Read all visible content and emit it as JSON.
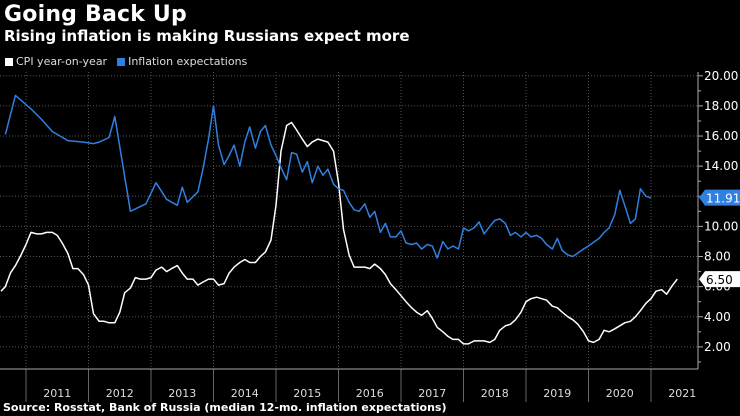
{
  "chart_data": {
    "type": "line",
    "title": "Going Back Up",
    "subtitle": "Rising inflation is making Russians expect more",
    "source": "Source: Rosstat, Bank of Russia (median 12-mo. inflation expectations)",
    "xlabel": "",
    "ylabel": "",
    "x_ticks": [
      "2011",
      "2012",
      "2013",
      "2014",
      "2015",
      "2016",
      "2017",
      "2018",
      "2019",
      "2020",
      "2021"
    ],
    "x_range": [
      2010.6,
      2021.45
    ],
    "y_ticks": [
      "2.00",
      "4.00",
      "6.00",
      "8.00",
      "10.00",
      "12.00",
      "14.00",
      "16.00",
      "18.00",
      "20.00"
    ],
    "ylim": [
      0,
      20.5
    ],
    "grid": true,
    "legend_position": "top-left",
    "colors": {
      "cpi": "#ffffff",
      "expectations": "#2f80e0",
      "background": "#000000"
    },
    "series": [
      {
        "name": "CPI year-on-year",
        "last_value_label": "6.50",
        "points": [
          [
            2010.6,
            5.7
          ],
          [
            2010.67,
            6.0
          ],
          [
            2010.75,
            6.9
          ],
          [
            2010.83,
            7.4
          ],
          [
            2010.92,
            8.1
          ],
          [
            2011.0,
            8.8
          ],
          [
            2011.08,
            9.6
          ],
          [
            2011.17,
            9.5
          ],
          [
            2011.25,
            9.5
          ],
          [
            2011.33,
            9.6
          ],
          [
            2011.42,
            9.6
          ],
          [
            2011.5,
            9.4
          ],
          [
            2011.58,
            8.9
          ],
          [
            2011.67,
            8.2
          ],
          [
            2011.75,
            7.2
          ],
          [
            2011.83,
            7.2
          ],
          [
            2011.92,
            6.8
          ],
          [
            2012.0,
            6.1
          ],
          [
            2012.08,
            4.2
          ],
          [
            2012.17,
            3.7
          ],
          [
            2012.25,
            3.7
          ],
          [
            2012.33,
            3.6
          ],
          [
            2012.42,
            3.6
          ],
          [
            2012.5,
            4.3
          ],
          [
            2012.58,
            5.6
          ],
          [
            2012.67,
            5.9
          ],
          [
            2012.75,
            6.6
          ],
          [
            2012.83,
            6.5
          ],
          [
            2012.92,
            6.5
          ],
          [
            2013.0,
            6.6
          ],
          [
            2013.08,
            7.1
          ],
          [
            2013.17,
            7.3
          ],
          [
            2013.25,
            7.0
          ],
          [
            2013.33,
            7.2
          ],
          [
            2013.42,
            7.4
          ],
          [
            2013.5,
            6.9
          ],
          [
            2013.58,
            6.5
          ],
          [
            2013.67,
            6.5
          ],
          [
            2013.75,
            6.1
          ],
          [
            2013.83,
            6.3
          ],
          [
            2013.92,
            6.5
          ],
          [
            2014.0,
            6.5
          ],
          [
            2014.08,
            6.1
          ],
          [
            2014.17,
            6.2
          ],
          [
            2014.25,
            6.9
          ],
          [
            2014.33,
            7.3
          ],
          [
            2014.42,
            7.6
          ],
          [
            2014.5,
            7.8
          ],
          [
            2014.58,
            7.6
          ],
          [
            2014.67,
            7.6
          ],
          [
            2014.75,
            8.0
          ],
          [
            2014.83,
            8.3
          ],
          [
            2014.92,
            9.1
          ],
          [
            2015.0,
            11.4
          ],
          [
            2015.08,
            15.0
          ],
          [
            2015.17,
            16.7
          ],
          [
            2015.25,
            16.9
          ],
          [
            2015.33,
            16.4
          ],
          [
            2015.42,
            15.8
          ],
          [
            2015.5,
            15.3
          ],
          [
            2015.58,
            15.6
          ],
          [
            2015.67,
            15.8
          ],
          [
            2015.75,
            15.7
          ],
          [
            2015.83,
            15.6
          ],
          [
            2015.92,
            15.0
          ],
          [
            2016.0,
            12.9
          ],
          [
            2016.08,
            9.8
          ],
          [
            2016.17,
            8.1
          ],
          [
            2016.25,
            7.3
          ],
          [
            2016.33,
            7.3
          ],
          [
            2016.42,
            7.3
          ],
          [
            2016.5,
            7.2
          ],
          [
            2016.58,
            7.5
          ],
          [
            2016.67,
            7.2
          ],
          [
            2016.75,
            6.8
          ],
          [
            2016.83,
            6.2
          ],
          [
            2016.92,
            5.8
          ],
          [
            2017.0,
            5.4
          ],
          [
            2017.08,
            5.0
          ],
          [
            2017.17,
            4.6
          ],
          [
            2017.25,
            4.3
          ],
          [
            2017.33,
            4.1
          ],
          [
            2017.42,
            4.4
          ],
          [
            2017.5,
            3.9
          ],
          [
            2017.58,
            3.3
          ],
          [
            2017.67,
            3.0
          ],
          [
            2017.75,
            2.7
          ],
          [
            2017.83,
            2.5
          ],
          [
            2017.92,
            2.5
          ],
          [
            2018.0,
            2.2
          ],
          [
            2018.08,
            2.2
          ],
          [
            2018.17,
            2.4
          ],
          [
            2018.25,
            2.4
          ],
          [
            2018.33,
            2.4
          ],
          [
            2018.42,
            2.3
          ],
          [
            2018.5,
            2.5
          ],
          [
            2018.58,
            3.1
          ],
          [
            2018.67,
            3.4
          ],
          [
            2018.75,
            3.5
          ],
          [
            2018.83,
            3.8
          ],
          [
            2018.92,
            4.3
          ],
          [
            2019.0,
            5.0
          ],
          [
            2019.08,
            5.2
          ],
          [
            2019.17,
            5.3
          ],
          [
            2019.25,
            5.2
          ],
          [
            2019.33,
            5.1
          ],
          [
            2019.42,
            4.7
          ],
          [
            2019.5,
            4.6
          ],
          [
            2019.58,
            4.3
          ],
          [
            2019.67,
            4.0
          ],
          [
            2019.75,
            3.8
          ],
          [
            2019.83,
            3.5
          ],
          [
            2019.92,
            3.0
          ],
          [
            2020.0,
            2.4
          ],
          [
            2020.08,
            2.3
          ],
          [
            2020.17,
            2.5
          ],
          [
            2020.25,
            3.1
          ],
          [
            2020.33,
            3.0
          ],
          [
            2020.42,
            3.2
          ],
          [
            2020.5,
            3.4
          ],
          [
            2020.58,
            3.6
          ],
          [
            2020.67,
            3.7
          ],
          [
            2020.75,
            4.0
          ],
          [
            2020.83,
            4.4
          ],
          [
            2020.92,
            4.9
          ],
          [
            2021.0,
            5.2
          ],
          [
            2021.08,
            5.7
          ],
          [
            2021.17,
            5.8
          ],
          [
            2021.25,
            5.5
          ],
          [
            2021.33,
            6.0
          ],
          [
            2021.42,
            6.5
          ]
        ]
      },
      {
        "name": "Inflation expectations",
        "last_value_label": "11.91",
        "points": [
          [
            2010.67,
            16.1
          ],
          [
            2010.83,
            18.7
          ],
          [
            2011.08,
            17.8
          ],
          [
            2011.25,
            17.1
          ],
          [
            2011.42,
            16.3
          ],
          [
            2011.67,
            15.7
          ],
          [
            2011.92,
            15.6
          ],
          [
            2012.08,
            15.5
          ],
          [
            2012.17,
            15.6
          ],
          [
            2012.33,
            15.9
          ],
          [
            2012.42,
            17.3
          ],
          [
            2012.67,
            11.0
          ],
          [
            2012.92,
            11.5
          ],
          [
            2013.08,
            12.9
          ],
          [
            2013.25,
            11.8
          ],
          [
            2013.42,
            11.4
          ],
          [
            2013.5,
            12.6
          ],
          [
            2013.58,
            11.6
          ],
          [
            2013.75,
            12.3
          ],
          [
            2013.83,
            13.8
          ],
          [
            2013.92,
            15.8
          ],
          [
            2014.0,
            18.0
          ],
          [
            2014.08,
            15.4
          ],
          [
            2014.17,
            14.1
          ],
          [
            2014.25,
            14.7
          ],
          [
            2014.33,
            15.4
          ],
          [
            2014.42,
            14.0
          ],
          [
            2014.5,
            15.6
          ],
          [
            2014.58,
            16.6
          ],
          [
            2014.67,
            15.2
          ],
          [
            2014.75,
            16.3
          ],
          [
            2014.83,
            16.7
          ],
          [
            2014.92,
            15.4
          ],
          [
            2015.0,
            14.7
          ],
          [
            2015.08,
            13.9
          ],
          [
            2015.17,
            13.1
          ],
          [
            2015.25,
            14.9
          ],
          [
            2015.33,
            14.8
          ],
          [
            2015.42,
            13.6
          ],
          [
            2015.5,
            14.3
          ],
          [
            2015.58,
            12.9
          ],
          [
            2015.67,
            14.0
          ],
          [
            2015.75,
            13.4
          ],
          [
            2015.83,
            13.8
          ],
          [
            2015.92,
            12.8
          ],
          [
            2016.0,
            12.5
          ],
          [
            2016.08,
            12.4
          ],
          [
            2016.17,
            11.6
          ],
          [
            2016.25,
            11.1
          ],
          [
            2016.33,
            11.0
          ],
          [
            2016.42,
            11.5
          ],
          [
            2016.5,
            10.6
          ],
          [
            2016.58,
            11.0
          ],
          [
            2016.67,
            9.6
          ],
          [
            2016.75,
            10.2
          ],
          [
            2016.83,
            9.3
          ],
          [
            2016.92,
            9.3
          ],
          [
            2017.0,
            9.7
          ],
          [
            2017.08,
            8.9
          ],
          [
            2017.17,
            8.8
          ],
          [
            2017.25,
            8.9
          ],
          [
            2017.33,
            8.5
          ],
          [
            2017.42,
            8.8
          ],
          [
            2017.5,
            8.7
          ],
          [
            2017.58,
            7.9
          ],
          [
            2017.67,
            9.0
          ],
          [
            2017.75,
            8.5
          ],
          [
            2017.83,
            8.7
          ],
          [
            2017.92,
            8.5
          ],
          [
            2018.0,
            9.9
          ],
          [
            2018.08,
            9.7
          ],
          [
            2018.17,
            9.9
          ],
          [
            2018.25,
            10.3
          ],
          [
            2018.33,
            9.5
          ],
          [
            2018.42,
            10.0
          ],
          [
            2018.5,
            10.4
          ],
          [
            2018.58,
            10.5
          ],
          [
            2018.67,
            10.2
          ],
          [
            2018.75,
            9.4
          ],
          [
            2018.83,
            9.6
          ],
          [
            2018.92,
            9.3
          ],
          [
            2019.0,
            9.6
          ],
          [
            2019.08,
            9.3
          ],
          [
            2019.17,
            9.4
          ],
          [
            2019.25,
            9.2
          ],
          [
            2019.33,
            8.8
          ],
          [
            2019.42,
            8.5
          ],
          [
            2019.5,
            9.2
          ],
          [
            2019.58,
            8.4
          ],
          [
            2019.67,
            8.1
          ],
          [
            2019.75,
            8.0
          ],
          [
            2019.92,
            8.5
          ],
          [
            2020.0,
            8.7
          ],
          [
            2020.17,
            9.2
          ],
          [
            2020.25,
            9.6
          ],
          [
            2020.33,
            9.9
          ],
          [
            2020.42,
            10.8
          ],
          [
            2020.5,
            12.4
          ],
          [
            2020.58,
            11.4
          ],
          [
            2020.67,
            10.2
          ],
          [
            2020.75,
            10.5
          ],
          [
            2020.83,
            12.5
          ],
          [
            2020.92,
            12.0
          ],
          [
            2021.0,
            11.9
          ]
        ]
      }
    ]
  }
}
